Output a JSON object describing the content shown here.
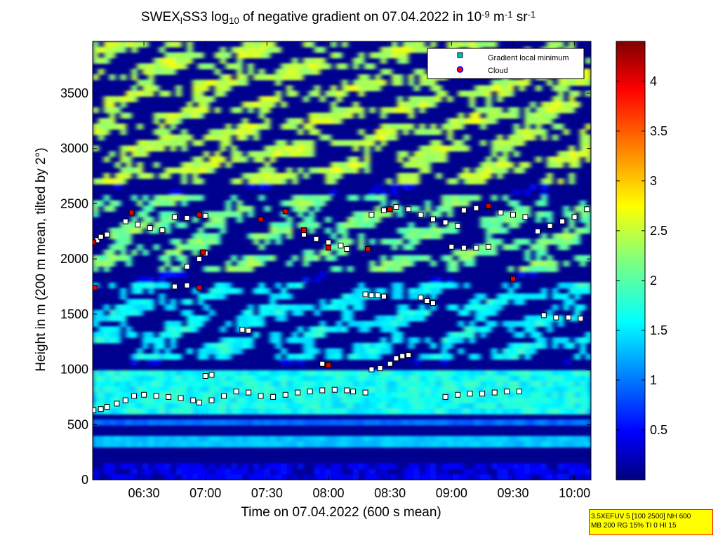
{
  "chart_data": {
    "type": "heatmap",
    "title_parts": {
      "prefix": "SWEX",
      "sub_l": "l",
      "mid": "SS3 log",
      "sub_10": "10",
      "rest": " of negative gradient on 07.04.2022 in 10",
      "sup_exp": "-9",
      "unit_m": " m",
      "sup_m": "-1",
      "unit_sr": " sr",
      "sup_sr": "-1"
    },
    "xlabel": "Time on 07.04.2022 (600 s mean)",
    "ylabel": "Height in m (200 m mean, tilted by 2°)",
    "x_range_hours": [
      6.0833,
      10.1333
    ],
    "x_ticks": [
      {
        "value": 6.5,
        "label": "06:30"
      },
      {
        "value": 7.0,
        "label": "07:00"
      },
      {
        "value": 7.5,
        "label": "07:30"
      },
      {
        "value": 8.0,
        "label": "08:00"
      },
      {
        "value": 8.5,
        "label": "08:30"
      },
      {
        "value": 9.0,
        "label": "09:00"
      },
      {
        "value": 9.5,
        "label": "09:30"
      },
      {
        "value": 10.0,
        "label": "10:00"
      }
    ],
    "y_range": [
      0,
      3970
    ],
    "y_ticks": [
      {
        "value": 0,
        "label": "0"
      },
      {
        "value": 500,
        "label": "500"
      },
      {
        "value": 1000,
        "label": "1000"
      },
      {
        "value": 1500,
        "label": "1500"
      },
      {
        "value": 2000,
        "label": "2000"
      },
      {
        "value": 2500,
        "label": "2500"
      },
      {
        "value": 3000,
        "label": "3000"
      },
      {
        "value": 3500,
        "label": "3500"
      }
    ],
    "colorbar": {
      "range": [
        0,
        4.4
      ],
      "colormap": "jet",
      "ticks": [
        {
          "value": 0.5,
          "label": "0.5"
        },
        {
          "value": 1.0,
          "label": "1"
        },
        {
          "value": 1.5,
          "label": "1.5"
        },
        {
          "value": 2.0,
          "label": "2"
        },
        {
          "value": 2.5,
          "label": "2.5"
        },
        {
          "value": 3.0,
          "label": "3"
        },
        {
          "value": 3.5,
          "label": "3.5"
        },
        {
          "value": 4.0,
          "label": "4"
        }
      ]
    },
    "heatmap_bands_approx": [
      {
        "height_from": 0,
        "height_to": 130,
        "level": 0.5
      },
      {
        "height_from": 280,
        "height_to": 380,
        "level": 1.4
      },
      {
        "height_from": 480,
        "height_to": 560,
        "level": 1.0
      },
      {
        "height_from": 600,
        "height_to": 1000,
        "level": 1.7
      },
      {
        "height_from": 1100,
        "height_to": 1800,
        "level": 1.4
      },
      {
        "height_from": 1900,
        "height_to": 2600,
        "level": 1.9
      },
      {
        "height_from": 2700,
        "height_to": 3970,
        "level": 2.2
      }
    ],
    "legend": {
      "position": "top-right",
      "entries": [
        {
          "label": "Gradient local minimum",
          "marker": "square",
          "color": "#00bfbf"
        },
        {
          "label": "Cloud",
          "marker": "circle",
          "color": "#ff0000",
          "edge": "#0000ff"
        }
      ]
    },
    "series": [
      {
        "name": "Gradient local minimum",
        "marker": "square",
        "traces": [
          {
            "x": [
              6.09,
              6.15,
              6.2,
              6.28,
              6.35,
              6.42,
              6.5,
              6.6,
              6.7,
              6.8,
              6.9,
              6.95
            ],
            "y": [
              630,
              640,
              660,
              690,
              720,
              760,
              770,
              760,
              750,
              740,
              720,
              700
            ]
          },
          {
            "x": [
              7.05,
              7.15,
              7.25,
              7.35,
              7.45,
              7.55,
              7.65,
              7.75,
              7.85,
              7.95,
              8.05,
              8.15,
              8.2,
              8.3
            ],
            "y": [
              720,
              760,
              800,
              790,
              760,
              750,
              770,
              790,
              800,
              810,
              815,
              810,
              800,
              790
            ]
          },
          {
            "x": [
              8.35,
              8.42,
              8.5,
              8.55,
              8.6,
              8.65
            ],
            "y": [
              1000,
              1010,
              1050,
              1100,
              1120,
              1130
            ]
          },
          {
            "x": [
              8.95,
              9.05,
              9.15,
              9.25,
              9.35,
              9.45,
              9.55
            ],
            "y": [
              750,
              770,
              780,
              780,
              790,
              800,
              800
            ]
          },
          {
            "x": [
              6.09,
              6.12,
              6.15,
              6.2
            ],
            "y": [
              2150,
              2170,
              2200,
              2220
            ]
          },
          {
            "x": [
              6.35,
              6.45,
              6.55,
              6.65
            ],
            "y": [
              2340,
              2310,
              2280,
              2260
            ]
          },
          {
            "x": [
              6.75,
              6.85,
              6.95,
              7.0
            ],
            "y": [
              2380,
              2370,
              2400,
              2390
            ]
          },
          {
            "x": [
              6.85,
              6.95,
              7.0
            ],
            "y": [
              1930,
              2000,
              2050
            ]
          },
          {
            "x": [
              6.75,
              6.85,
              6.95
            ],
            "y": [
              1750,
              1760,
              1740
            ]
          },
          {
            "x": [
              7.8,
              7.9,
              8.0,
              8.1,
              8.15
            ],
            "y": [
              2220,
              2180,
              2150,
              2120,
              2090
            ]
          },
          {
            "x": [
              8.35,
              8.45,
              8.55,
              8.65,
              8.75,
              8.85,
              8.95,
              9.05
            ],
            "y": [
              2400,
              2440,
              2470,
              2450,
              2400,
              2360,
              2330,
              2300
            ]
          },
          {
            "x": [
              9.1,
              9.2,
              9.3,
              9.4,
              9.5,
              9.6
            ],
            "y": [
              2440,
              2460,
              2480,
              2420,
              2400,
              2380
            ]
          },
          {
            "x": [
              9.7,
              9.8,
              9.9,
              10.0,
              10.1
            ],
            "y": [
              2250,
              2300,
              2340,
              2380,
              2450
            ]
          },
          {
            "x": [
              8.3,
              8.35,
              8.4,
              8.45
            ],
            "y": [
              1680,
              1670,
              1670,
              1660
            ]
          },
          {
            "x": [
              8.75,
              8.8,
              8.85
            ],
            "y": [
              1650,
              1620,
              1600
            ]
          },
          {
            "x": [
              9.0,
              9.1,
              9.2,
              9.3
            ],
            "y": [
              2110,
              2100,
              2100,
              2110
            ]
          },
          {
            "x": [
              9.75,
              9.85,
              9.95,
              10.05
            ],
            "y": [
              1490,
              1470,
              1470,
              1460
            ]
          },
          {
            "x": [
              7.0,
              7.05
            ],
            "y": [
              940,
              950
            ]
          },
          {
            "x": [
              7.95,
              8.0
            ],
            "y": [
              1050,
              1040
            ]
          },
          {
            "x": [
              7.3,
              7.35
            ],
            "y": [
              1360,
              1350
            ]
          }
        ]
      },
      {
        "name": "Cloud",
        "marker": "circle",
        "points": [
          {
            "x": 6.09,
            "y": 2150
          },
          {
            "x": 6.1,
            "y": 1740
          },
          {
            "x": 6.4,
            "y": 2420
          },
          {
            "x": 6.95,
            "y": 2400
          },
          {
            "x": 6.98,
            "y": 2060
          },
          {
            "x": 6.95,
            "y": 1740
          },
          {
            "x": 7.65,
            "y": 2430
          },
          {
            "x": 7.8,
            "y": 2260
          },
          {
            "x": 8.0,
            "y": 2100
          },
          {
            "x": 8.32,
            "y": 2090
          },
          {
            "x": 8.5,
            "y": 2450
          },
          {
            "x": 9.3,
            "y": 2480
          },
          {
            "x": 9.5,
            "y": 1820
          },
          {
            "x": 7.45,
            "y": 2360
          },
          {
            "x": 8.0,
            "y": 1040
          }
        ]
      }
    ]
  },
  "info_box": {
    "line1": "3.5XEFUV 5 [100 2500] NH 600",
    "line2": "MB 200 RG 15% TI 0 HI 15",
    "background": "#ffff00",
    "border": "#ff0000"
  }
}
